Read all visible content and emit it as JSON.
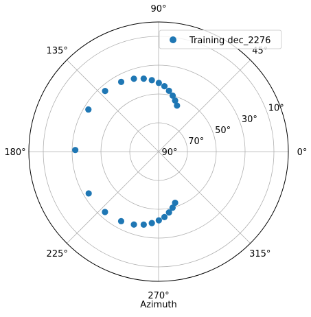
{
  "chart_data": {
    "type": "scatter",
    "projection": "polar",
    "xlabel": "Azimuth",
    "theta_ticks": [
      {
        "angle": 0,
        "label": "0°"
      },
      {
        "angle": 45,
        "label": "45°"
      },
      {
        "angle": 90,
        "label": "90°"
      },
      {
        "angle": 135,
        "label": "135°"
      },
      {
        "angle": 180,
        "label": "180°"
      },
      {
        "angle": 225,
        "label": "225°"
      },
      {
        "angle": 270,
        "label": "270°"
      },
      {
        "angle": 315,
        "label": "315°"
      }
    ],
    "r_axis": {
      "range": [
        0,
        90
      ],
      "inverted": true,
      "ticks": [
        10,
        30,
        50,
        70,
        90
      ],
      "tick_labels": [
        "10°",
        "30°",
        "50°",
        "70°",
        "90°"
      ]
    },
    "grid": true,
    "legend": {
      "position": "top-right",
      "entries": [
        "Training dec_2276"
      ]
    },
    "series": [
      {
        "name": "Training dec_2276",
        "color": "#1f77b4",
        "azimuth_deg": [
          68.2,
          72.1,
          75.9,
          80.3,
          84.9,
          89.8,
          95.4,
          101.5,
          108.7,
          118.2,
          131.4,
          149.0,
          178.9,
          210.9,
          228.4,
          241.7,
          251.3,
          258.5,
          264.6,
          270.2,
          275.1,
          279.7,
          284.0,
          287.9
        ],
        "elevation_deg": [
          55.6,
          52.7,
          49.9,
          47.2,
          44.4,
          42.3,
          40.2,
          38.3,
          36.6,
          35.1,
          33.9,
          33.2,
          32.2,
          33.5,
          34.0,
          35.2,
          36.6,
          38.3,
          40.2,
          42.3,
          44.4,
          47.2,
          49.9,
          52.7
        ]
      }
    ]
  }
}
